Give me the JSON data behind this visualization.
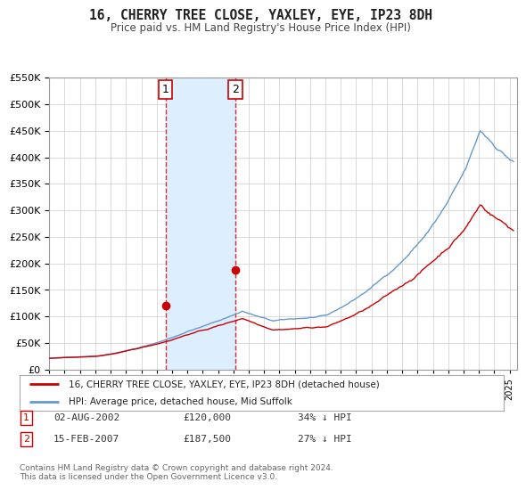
{
  "title": "16, CHERRY TREE CLOSE, YAXLEY, EYE, IP23 8DH",
  "subtitle": "Price paid vs. HM Land Registry's House Price Index (HPI)",
  "legend_line1": "16, CHERRY TREE CLOSE, YAXLEY, EYE, IP23 8DH (detached house)",
  "legend_line2": "HPI: Average price, detached house, Mid Suffolk",
  "transaction1_date": "02-AUG-2002",
  "transaction1_price": "£120,000",
  "transaction1_hpi": "34% ↓ HPI",
  "transaction2_date": "15-FEB-2007",
  "transaction2_price": "£187,500",
  "transaction2_hpi": "27% ↓ HPI",
  "footnote": "Contains HM Land Registry data © Crown copyright and database right 2024.\nThis data is licensed under the Open Government Licence v3.0.",
  "red_color": "#cc0000",
  "blue_color": "#6699cc",
  "shading_color": "#ddeeff",
  "grid_color": "#cccccc",
  "background_color": "#ffffff",
  "ylim": [
    0,
    550000
  ],
  "xmin": 1995.0,
  "xmax": 2025.5,
  "transaction1_x": 2002.58,
  "transaction1_y": 120000,
  "transaction2_x": 2007.12,
  "transaction2_y": 187500
}
